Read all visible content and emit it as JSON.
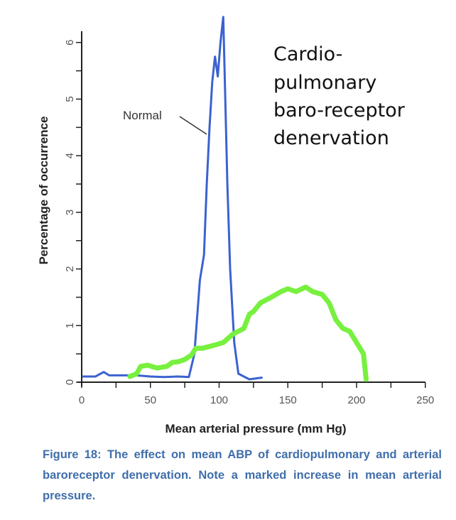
{
  "chart_data": {
    "type": "line",
    "title": "",
    "xlabel": "Mean arterial pressure (mm Hg)",
    "ylabel": "Percentage of occurrence",
    "xlim": [
      0,
      250
    ],
    "ylim": [
      0,
      6.5
    ],
    "xticks": [
      0,
      50,
      100,
      150,
      200,
      250
    ],
    "xtick_labels": [
      "0",
      "50",
      "100",
      "150",
      "200",
      "250"
    ],
    "yticks": [
      0,
      1,
      2,
      3,
      4,
      5,
      6
    ],
    "ytick_labels": [
      "0",
      "1",
      "2",
      "3",
      "4",
      "5",
      "6"
    ],
    "grid": false,
    "series": [
      {
        "name": "Normal",
        "color": "#3a62d0",
        "x": [
          1,
          10,
          16,
          20,
          30,
          40,
          50,
          60,
          70,
          78,
          82,
          86,
          89,
          91,
          93,
          95,
          97,
          99,
          101,
          103,
          104,
          106,
          108,
          111,
          114,
          118,
          122,
          128,
          131
        ],
        "y": [
          0.1,
          0.1,
          0.18,
          0.12,
          0.12,
          0.12,
          0.1,
          0.09,
          0.1,
          0.09,
          0.5,
          1.8,
          2.25,
          3.5,
          4.5,
          5.3,
          5.75,
          5.4,
          6.0,
          6.45,
          5.5,
          3.5,
          2.0,
          0.7,
          0.15,
          0.1,
          0.05,
          0.07,
          0.08
        ]
      },
      {
        "name": "Cardiopulmonary baro-receptor denervation",
        "color": "#77f03e",
        "x": [
          35,
          40,
          43,
          48,
          55,
          62,
          66,
          70,
          75,
          80,
          83,
          88,
          96,
          103,
          110,
          118,
          122,
          125,
          130,
          138,
          145,
          150,
          156,
          163,
          168,
          175,
          180,
          185,
          190,
          195,
          200,
          205,
          207
        ],
        "y": [
          0.1,
          0.15,
          0.28,
          0.3,
          0.25,
          0.28,
          0.35,
          0.36,
          0.4,
          0.48,
          0.6,
          0.6,
          0.65,
          0.7,
          0.85,
          0.95,
          1.2,
          1.25,
          1.4,
          1.5,
          1.6,
          1.65,
          1.6,
          1.68,
          1.6,
          1.55,
          1.4,
          1.1,
          0.95,
          0.9,
          0.7,
          0.5,
          0.05
        ]
      }
    ],
    "annotations": {
      "normal_label": "Normal",
      "denervation_label_lines": [
        "Cardio-",
        "pulmonary",
        "baro-receptor",
        "denervation"
      ]
    }
  },
  "caption": "Figure 18: The effect on mean ABP of cardiopulmonary and arterial baroreceptor denervation. Note a marked increase in mean arterial pressure."
}
